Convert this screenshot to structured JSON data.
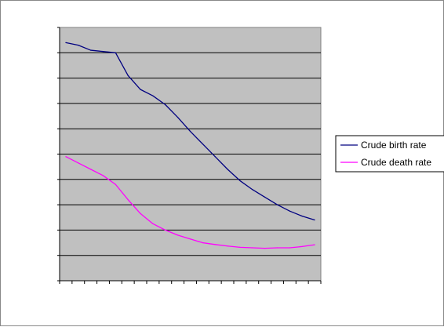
{
  "chart_data": {
    "type": "line",
    "title": "",
    "xlabel": "",
    "ylabel": "",
    "x": [
      1,
      2,
      3,
      4,
      5,
      6,
      7,
      8,
      9,
      10,
      11,
      12,
      13,
      14,
      15,
      16,
      17,
      18,
      19,
      20,
      21
    ],
    "ylim": [
      0,
      10
    ],
    "xlim": [
      0,
      21
    ],
    "grid": true,
    "legend_position": "right",
    "plot_background": "#c0c0c0",
    "series": [
      {
        "name": "Crude birth rate",
        "color": "#000080",
        "values": [
          9.4,
          9.3,
          9.1,
          9.05,
          9.0,
          8.1,
          7.55,
          7.3,
          6.95,
          6.45,
          5.9,
          5.4,
          4.9,
          4.4,
          3.95,
          3.6,
          3.3,
          3.0,
          2.75,
          2.55,
          2.4
        ]
      },
      {
        "name": "Crude death rate",
        "color": "#ff00ff",
        "values": [
          4.9,
          4.65,
          4.4,
          4.15,
          3.8,
          3.2,
          2.65,
          2.25,
          2.0,
          1.8,
          1.65,
          1.5,
          1.43,
          1.37,
          1.32,
          1.3,
          1.28,
          1.3,
          1.3,
          1.35,
          1.42
        ]
      }
    ]
  }
}
